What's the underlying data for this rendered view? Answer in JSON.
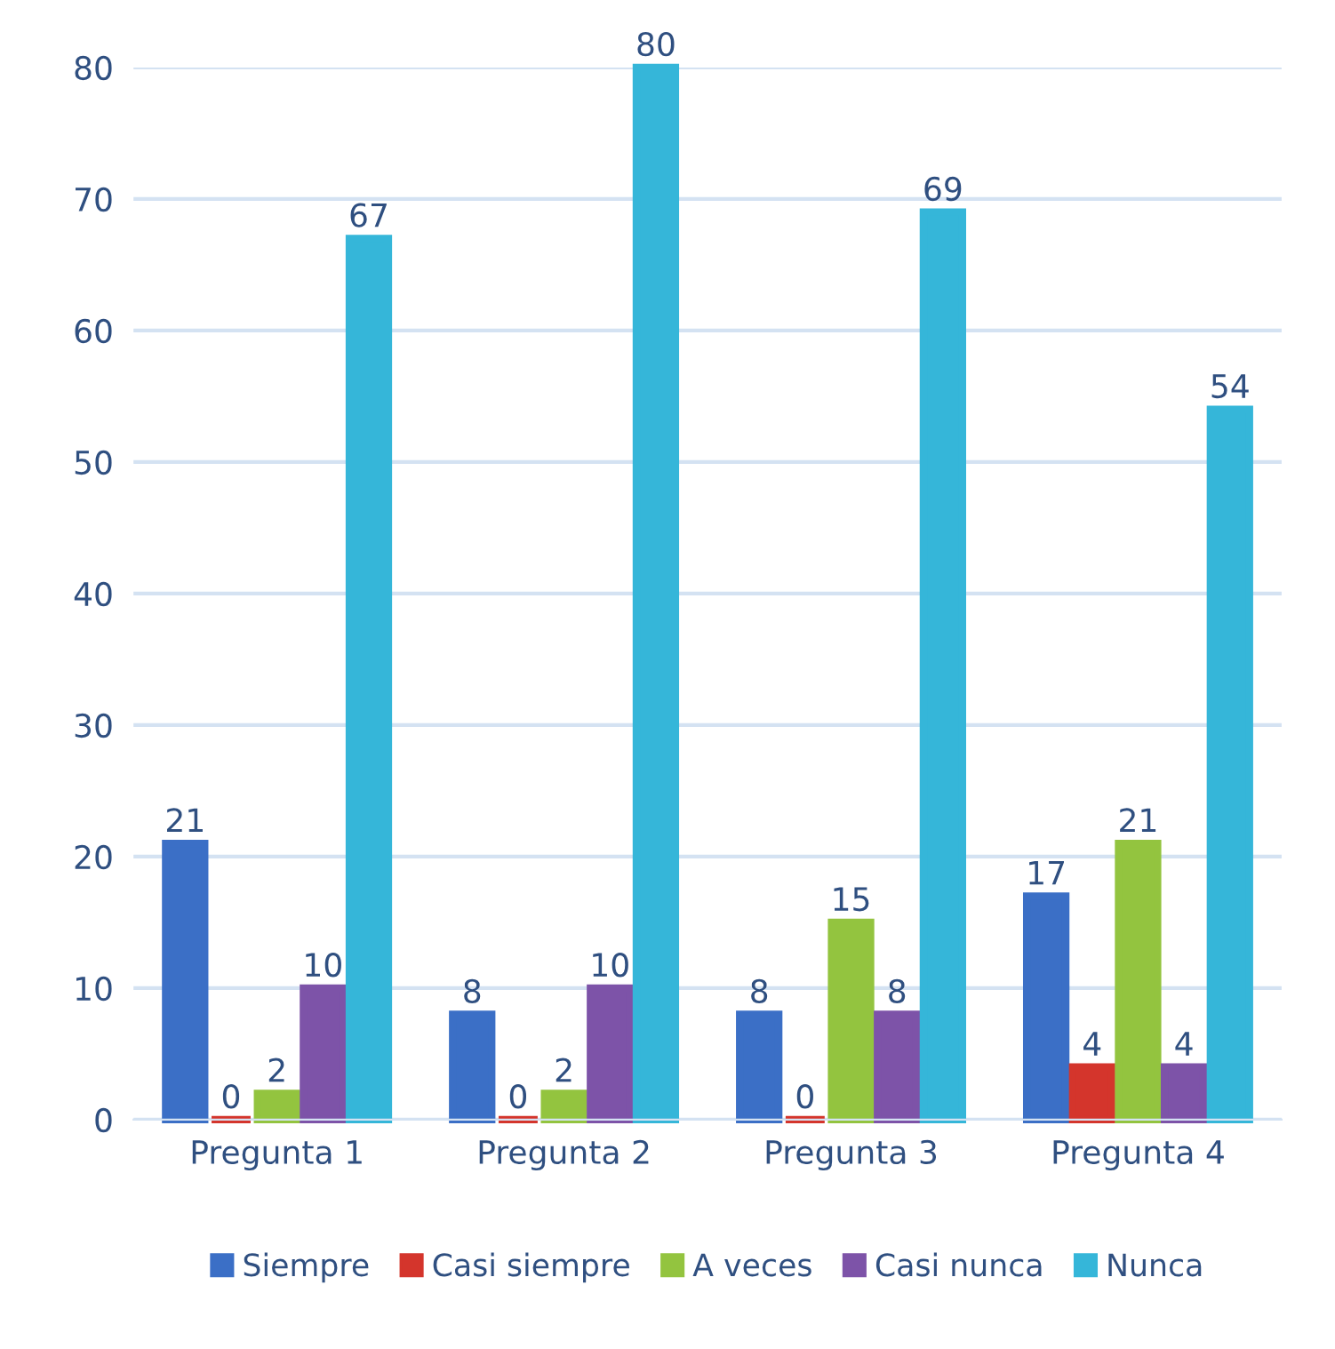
{
  "chart_data": {
    "type": "bar",
    "categories": [
      "Pregunta 1",
      "Pregunta 2",
      "Pregunta 3",
      "Pregunta 4"
    ],
    "series": [
      {
        "name": "Siempre",
        "color": "#3b6fc6",
        "values": [
          21,
          8,
          8,
          17
        ]
      },
      {
        "name": "Casi siempre",
        "color": "#d4352c",
        "values": [
          0,
          0,
          0,
          4
        ]
      },
      {
        "name": "A veces",
        "color": "#93c43f",
        "values": [
          2,
          2,
          15,
          21
        ]
      },
      {
        "name": "Casi nunca",
        "color": "#7d53a8",
        "values": [
          10,
          10,
          8,
          4
        ]
      },
      {
        "name": "Nunca",
        "color": "#35b6d9",
        "values": [
          67,
          80,
          69,
          54
        ]
      }
    ],
    "ylim": [
      0,
      80
    ],
    "yticks": [
      0,
      10,
      20,
      30,
      40,
      50,
      60,
      70,
      80
    ],
    "grid": "y",
    "legend": "bottom",
    "data_labels": true
  }
}
